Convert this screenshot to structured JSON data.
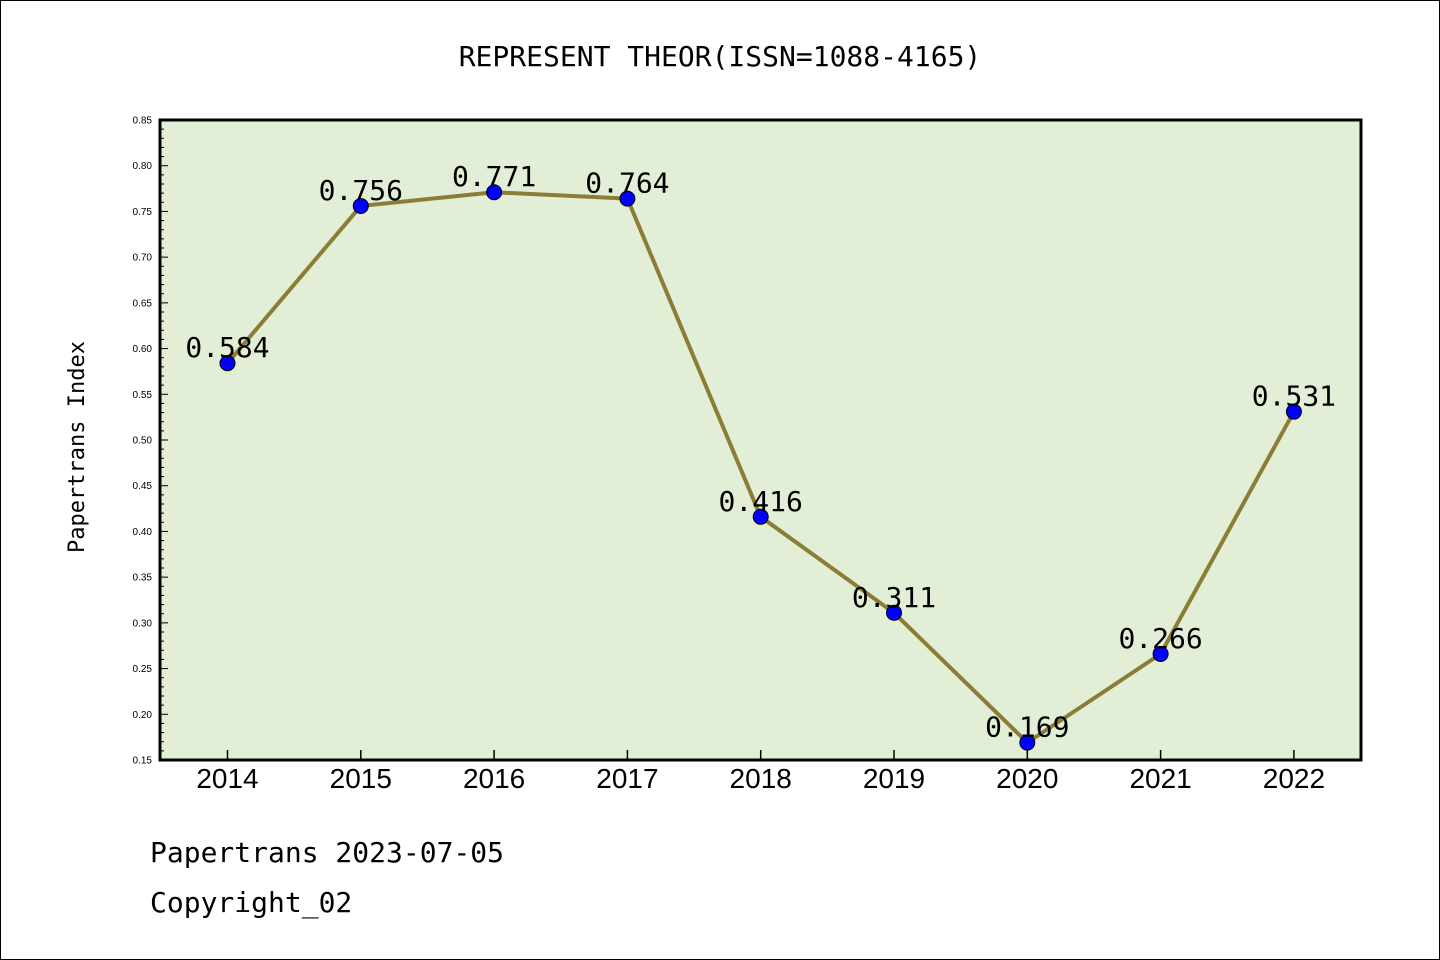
{
  "chart_data": {
    "type": "line",
    "title": "REPRESENT THEOR(ISSN=1088-4165)",
    "xlabel": "",
    "ylabel": "Papertrans Index",
    "categories": [
      "2014",
      "2015",
      "2016",
      "2017",
      "2018",
      "2019",
      "2020",
      "2021",
      "2022"
    ],
    "series": [
      {
        "values": [
          0.584,
          0.756,
          0.771,
          0.764,
          0.416,
          0.311,
          0.169,
          0.266,
          0.531
        ],
        "data_labels": [
          "0.584",
          "0.756",
          "0.771",
          "0.764",
          "0.416",
          "0.311",
          "0.169",
          "0.266",
          "0.531"
        ]
      }
    ],
    "ylim": [
      0.15,
      0.85
    ],
    "yticks": [
      "0.15",
      "0.20",
      "0.25",
      "0.30",
      "0.35",
      "0.40",
      "0.45",
      "0.50",
      "0.55",
      "0.60",
      "0.65",
      "0.70",
      "0.75",
      "0.80",
      "0.85"
    ],
    "grid": false,
    "legend": "none",
    "colors": {
      "plot_background": "#e2efd6",
      "line": "#8b7d35",
      "marker": "#0000ff"
    }
  },
  "footer": {
    "line1": "Papertrans 2023-07-05",
    "line2": "Copyright_02"
  }
}
